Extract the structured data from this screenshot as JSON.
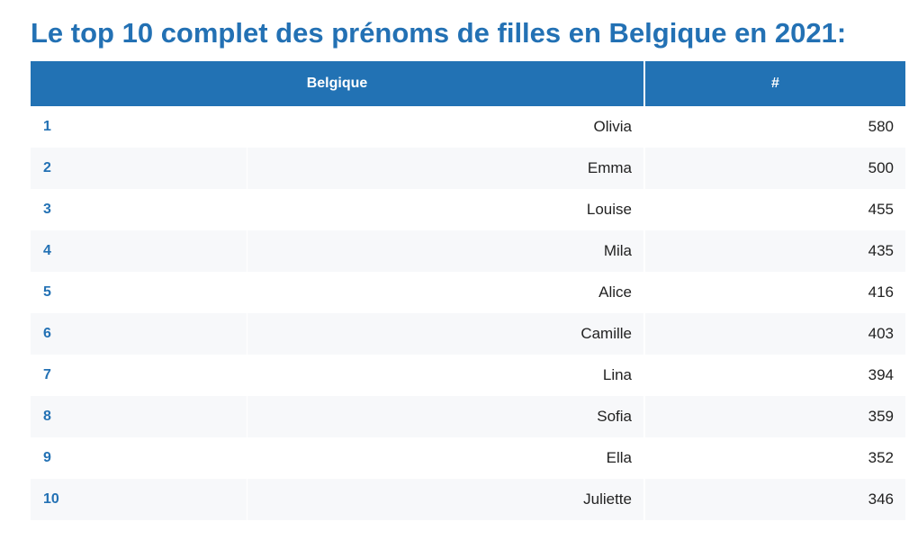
{
  "title": "Le top 10 complet des prénoms de filles en Belgique en 2021:",
  "table": {
    "headers": {
      "region": "Belgique",
      "count": "#"
    },
    "rows": [
      {
        "rank": "1",
        "name": "Olivia",
        "count": "580"
      },
      {
        "rank": "2",
        "name": "Emma",
        "count": "500"
      },
      {
        "rank": "3",
        "name": "Louise",
        "count": "455"
      },
      {
        "rank": "4",
        "name": "Mila",
        "count": "435"
      },
      {
        "rank": "5",
        "name": "Alice",
        "count": "416"
      },
      {
        "rank": "6",
        "name": "Camille",
        "count": "403"
      },
      {
        "rank": "7",
        "name": "Lina",
        "count": "394"
      },
      {
        "rank": "8",
        "name": "Sofia",
        "count": "359"
      },
      {
        "rank": "9",
        "name": "Ella",
        "count": "352"
      },
      {
        "rank": "10",
        "name": "Juliette",
        "count": "346"
      }
    ]
  },
  "colors": {
    "accent": "#2371b4",
    "header_bg": "#2272b4",
    "stripe": "#f7f8fa"
  }
}
